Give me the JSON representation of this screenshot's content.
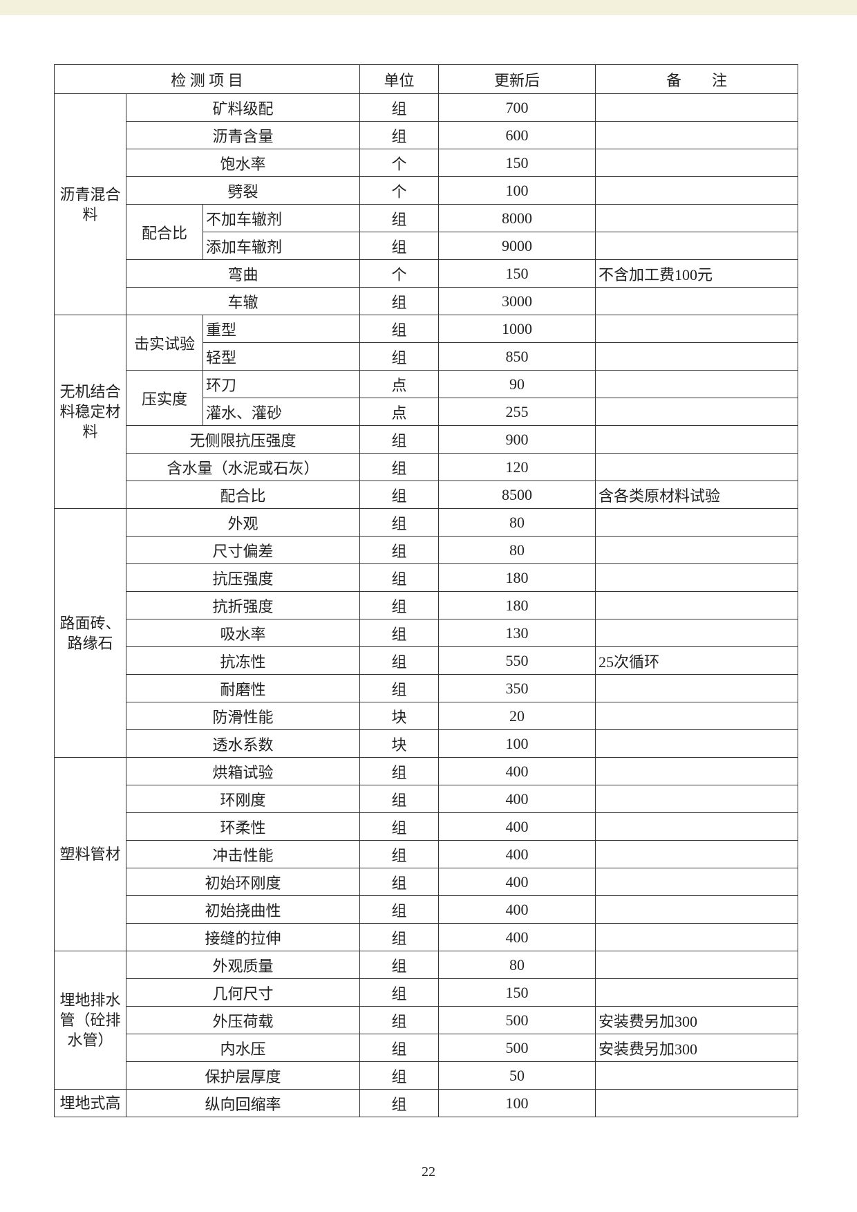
{
  "header": [
    "检 测 项 目",
    "单位",
    "更新后",
    "备        注"
  ],
  "groups": [
    {
      "name": "沥青混合料",
      "items": [
        {
          "item": "矿料级配",
          "unit": "组",
          "value": 700
        },
        {
          "item": "沥青含量",
          "unit": "组",
          "value": 600
        },
        {
          "item": "饱水率",
          "unit": "个",
          "value": 150
        },
        {
          "item": "劈裂",
          "unit": "个",
          "value": 100
        },
        {
          "sub": "配合比",
          "items": [
            {
              "item": "不加车辙剂",
              "unit": "组",
              "value": 8000
            },
            {
              "item": "添加车辙剂",
              "unit": "组",
              "value": 9000
            }
          ]
        },
        {
          "item": "弯曲",
          "unit": "个",
          "value": 150,
          "note": "不含加工费100元"
        },
        {
          "item": "车辙",
          "unit": "组",
          "value": 3000
        }
      ]
    },
    {
      "name": "无机结合料稳定材料",
      "items": [
        {
          "sub": "击实试验",
          "items": [
            {
              "item": "重型",
              "unit": "组",
              "value": 1000
            },
            {
              "item": "轻型",
              "unit": "组",
              "value": 850
            }
          ]
        },
        {
          "sub": "压实度",
          "items": [
            {
              "item": "环刀",
              "unit": "点",
              "value": 90
            },
            {
              "item": "灌水、灌砂",
              "unit": "点",
              "value": 255
            }
          ]
        },
        {
          "item": "无侧限抗压强度",
          "unit": "组",
          "value": 900
        },
        {
          "item": "含水量（水泥或石灰）",
          "unit": "组",
          "value": 120
        },
        {
          "item": "配合比",
          "unit": "组",
          "value": 8500,
          "note": "含各类原材料试验"
        }
      ]
    },
    {
      "name": "路面砖、路缘石",
      "items": [
        {
          "item": "外观",
          "unit": "组",
          "value": 80
        },
        {
          "item": "尺寸偏差",
          "unit": "组",
          "value": 80
        },
        {
          "item": "抗压强度",
          "unit": "组",
          "value": 180
        },
        {
          "item": "抗折强度",
          "unit": "组",
          "value": 180
        },
        {
          "item": "吸水率",
          "unit": "组",
          "value": 130
        },
        {
          "item": "抗冻性",
          "unit": "组",
          "value": 550,
          "note": "25次循环"
        },
        {
          "item": "耐磨性",
          "unit": "组",
          "value": 350
        },
        {
          "item": "防滑性能",
          "unit": "块",
          "value": 20
        },
        {
          "item": "透水系数",
          "unit": "块",
          "value": 100
        }
      ]
    },
    {
      "name": "塑料管材",
      "items": [
        {
          "item": "烘箱试验",
          "unit": "组",
          "value": 400
        },
        {
          "item": "环刚度",
          "unit": "组",
          "value": 400
        },
        {
          "item": "环柔性",
          "unit": "组",
          "value": 400
        },
        {
          "item": "冲击性能",
          "unit": "组",
          "value": 400
        },
        {
          "item": "初始环刚度",
          "unit": "组",
          "value": 400
        },
        {
          "item": "初始挠曲性",
          "unit": "组",
          "value": 400
        },
        {
          "item": "接缝的拉伸",
          "unit": "组",
          "value": 400
        }
      ]
    },
    {
      "name": "埋地排水管（砼排水管）",
      "items": [
        {
          "item": "外观质量",
          "unit": "组",
          "value": 80
        },
        {
          "item": "几何尺寸",
          "unit": "组",
          "value": 150
        },
        {
          "item": "外压荷载",
          "unit": "组",
          "value": 500,
          "note": "安装费另加300"
        },
        {
          "item": "内水压",
          "unit": "组",
          "value": 500,
          "note": "安装费另加300"
        },
        {
          "item": "保护层厚度",
          "unit": "组",
          "value": 50
        }
      ]
    },
    {
      "name": "埋地式高",
      "items": [
        {
          "item": "纵向回缩率",
          "unit": "组",
          "value": 100
        }
      ]
    }
  ],
  "page_number": 22
}
